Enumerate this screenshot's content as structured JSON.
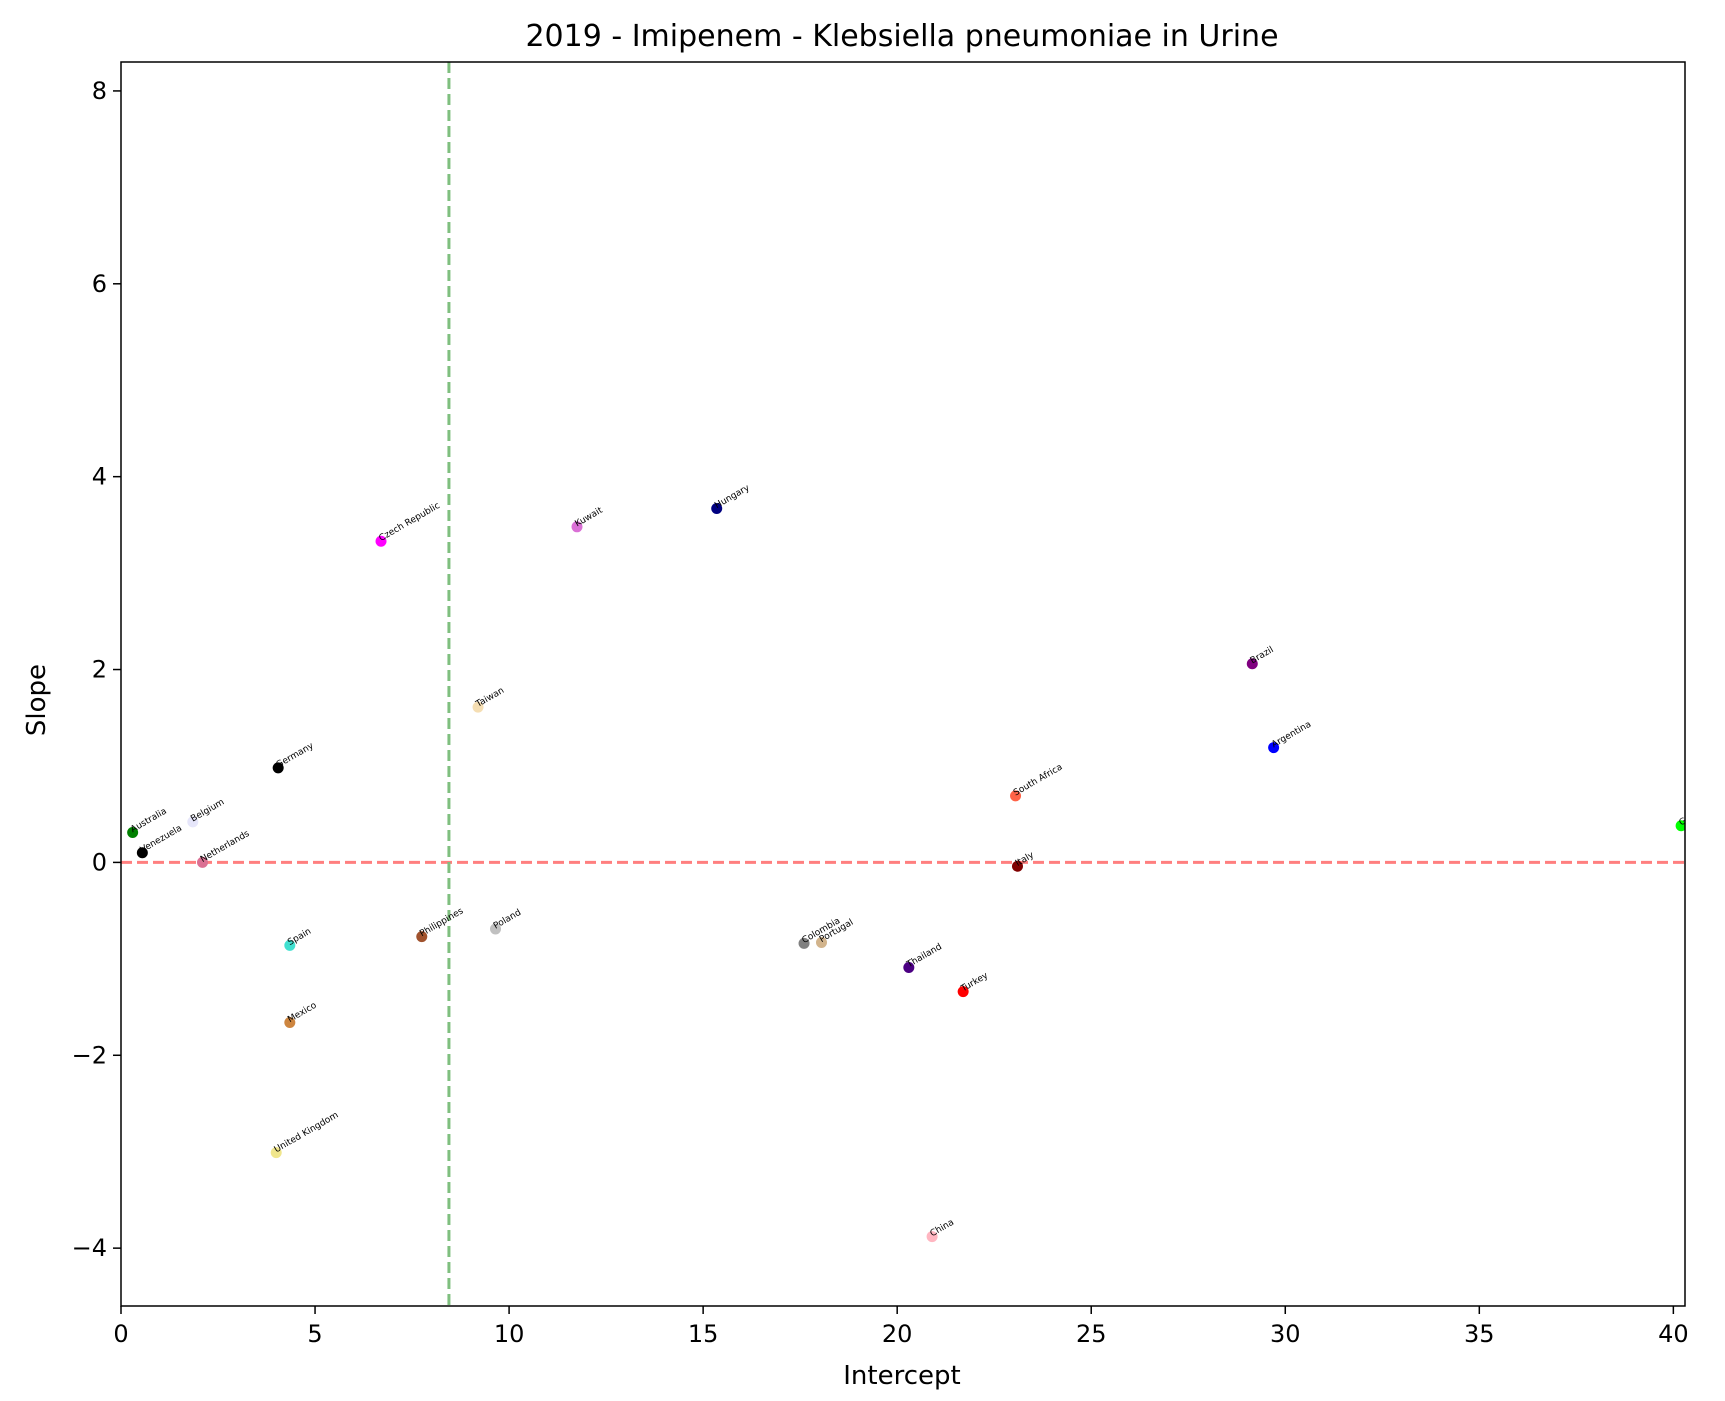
{
  "chart_data": {
    "type": "scatter",
    "title": "2019 - Imipenem - Klebsiella pneumoniae in Urine",
    "xlabel": "Intercept",
    "ylabel": "Slope",
    "xlim": [
      0,
      40.3
    ],
    "ylim": [
      -4.6,
      8.3
    ],
    "xticks": [
      0,
      5,
      10,
      15,
      20,
      25,
      30,
      35,
      40
    ],
    "yticks": [
      -4,
      -2,
      0,
      2,
      4,
      6,
      8
    ],
    "grid": false,
    "reference_lines": [
      {
        "orientation": "horizontal",
        "value": 0,
        "color": "#ff7f7f",
        "style": "dashed"
      },
      {
        "orientation": "vertical",
        "value": 8.45,
        "color": "#7fbf7f",
        "style": "dashed"
      }
    ],
    "points": [
      {
        "label": "Czech Republic",
        "x": 6.7,
        "y": 3.33,
        "color": "#ff00ff"
      },
      {
        "label": "Kuwait",
        "x": 11.75,
        "y": 3.48,
        "color": "#da70d6"
      },
      {
        "label": "Hungary",
        "x": 15.35,
        "y": 3.67,
        "color": "#000080"
      },
      {
        "label": "Brazil",
        "x": 29.15,
        "y": 2.06,
        "color": "#800080"
      },
      {
        "label": "Taiwan",
        "x": 9.2,
        "y": 1.61,
        "color": "#f5deb3"
      },
      {
        "label": "Argentina",
        "x": 29.7,
        "y": 1.19,
        "color": "#0000ff"
      },
      {
        "label": "Germany",
        "x": 4.05,
        "y": 0.98,
        "color": "#000000"
      },
      {
        "label": "South Africa",
        "x": 23.05,
        "y": 0.69,
        "color": "#ff6347"
      },
      {
        "label": "Australia",
        "x": 0.3,
        "y": 0.31,
        "color": "#008000"
      },
      {
        "label": "Belgium",
        "x": 1.85,
        "y": 0.42,
        "color": "#e6e6fa"
      },
      {
        "label": "Venezuela",
        "x": 0.55,
        "y": 0.1,
        "color": "#000000"
      },
      {
        "label": "Greece",
        "x": 40.2,
        "y": 0.38,
        "color": "#00ff00"
      },
      {
        "label": "Netherlands",
        "x": 2.1,
        "y": 0.0,
        "color": "#db7093"
      },
      {
        "label": "Italy",
        "x": 23.1,
        "y": -0.04,
        "color": "#800000"
      },
      {
        "label": "Poland",
        "x": 9.65,
        "y": -0.69,
        "color": "#c0c0c0"
      },
      {
        "label": "Philippines",
        "x": 7.75,
        "y": -0.77,
        "color": "#a0522d"
      },
      {
        "label": "Colombia",
        "x": 17.6,
        "y": -0.84,
        "color": "#808080"
      },
      {
        "label": "Portugal",
        "x": 18.05,
        "y": -0.83,
        "color": "#d2b48c"
      },
      {
        "label": "Spain",
        "x": 4.35,
        "y": -0.86,
        "color": "#40e0d0"
      },
      {
        "label": "Thailand",
        "x": 20.3,
        "y": -1.09,
        "color": "#4b0082"
      },
      {
        "label": "Turkey",
        "x": 21.7,
        "y": -1.34,
        "color": "#ff0000"
      },
      {
        "label": "Mexico",
        "x": 4.35,
        "y": -1.66,
        "color": "#cd853f"
      },
      {
        "label": "United Kingdom",
        "x": 4.0,
        "y": -3.01,
        "color": "#f0e68c"
      },
      {
        "label": "China",
        "x": 20.9,
        "y": -3.88,
        "color": "#ffb6c1"
      }
    ]
  }
}
